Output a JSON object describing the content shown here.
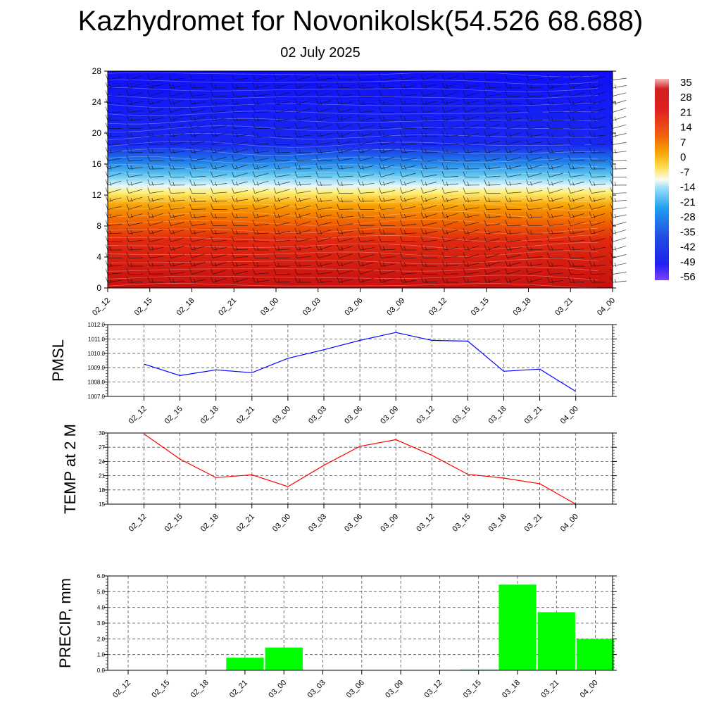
{
  "header": {
    "title": "Kazhydromet for Novonikolsk(54.526 68.688)",
    "subtitle": "02 July 2025"
  },
  "chart_data": [
    {
      "type": "heatmap",
      "title": "",
      "x": [
        "02_12",
        "02_15",
        "02_18",
        "02_21",
        "03_00",
        "03_03",
        "03_06",
        "03_09",
        "03_12",
        "03_15",
        "03_18",
        "03_21",
        "04_00"
      ],
      "ylim": [
        0,
        28
      ],
      "yticks": [
        0,
        4,
        8,
        12,
        16,
        20,
        24,
        28
      ],
      "colorbar": {
        "labels": [
          "35",
          "28",
          "21",
          "14",
          "7",
          "0",
          "-7",
          "-14",
          "-21",
          "-28",
          "-35",
          "-42",
          "-49",
          "-56"
        ]
      },
      "colors": {
        "warm": "#d01010",
        "orange": "#f08000",
        "yellow": "#ffe040",
        "pale": "#e0f4fc",
        "cyan": "#30b0f0",
        "blue": "#2040e0",
        "deep": "#1010f8",
        "violet": "#8040ff"
      }
    },
    {
      "type": "line",
      "ylabel": "PMSL",
      "x": [
        "02_12",
        "02_15",
        "02_18",
        "02_21",
        "03_00",
        "03_03",
        "03_06",
        "03_09",
        "03_12",
        "03_15",
        "03_18",
        "03_21",
        "04_00"
      ],
      "values": [
        1009.25,
        1008.45,
        1008.85,
        1008.65,
        1009.65,
        1010.25,
        1010.9,
        1011.45,
        1010.9,
        1010.85,
        1008.75,
        1008.9,
        1007.35
      ],
      "ylim": [
        1007.0,
        1012.0
      ],
      "yticks": [
        "1007.0",
        "1008.0",
        "1009.0",
        "1010.0",
        "1011.0",
        "1012.0"
      ],
      "color": "#0000ff"
    },
    {
      "type": "line",
      "ylabel": "TEMP at 2 M",
      "x": [
        "02_12",
        "02_15",
        "02_18",
        "02_21",
        "03_00",
        "03_03",
        "03_06",
        "03_09",
        "03_12",
        "03_15",
        "03_18",
        "03_21",
        "04_00"
      ],
      "values": [
        29.8,
        24.5,
        20.6,
        21.2,
        18.7,
        23.2,
        27.2,
        28.6,
        25.3,
        21.3,
        20.5,
        19.3,
        15.0
      ],
      "ylim": [
        15,
        30
      ],
      "yticks": [
        "15",
        "18",
        "21",
        "24",
        "27",
        "30"
      ],
      "color": "#ff0000"
    },
    {
      "type": "bar",
      "ylabel": "PRECIP, mm",
      "categories": [
        "02_12",
        "02_15",
        "02_18",
        "02_21",
        "03_00",
        "03_03",
        "03_06",
        "03_09",
        "03_12",
        "03_15",
        "03_18",
        "03_21",
        "04_00"
      ],
      "values": [
        0,
        0,
        0,
        0.8,
        1.45,
        0,
        0,
        0,
        0,
        0.05,
        5.45,
        3.7,
        2.0
      ],
      "ylim": [
        0,
        6.0
      ],
      "yticks": [
        "0.0",
        "1.0",
        "2.0",
        "3.0",
        "4.0",
        "5.0",
        "6.0"
      ],
      "color": "#00ff00"
    }
  ]
}
